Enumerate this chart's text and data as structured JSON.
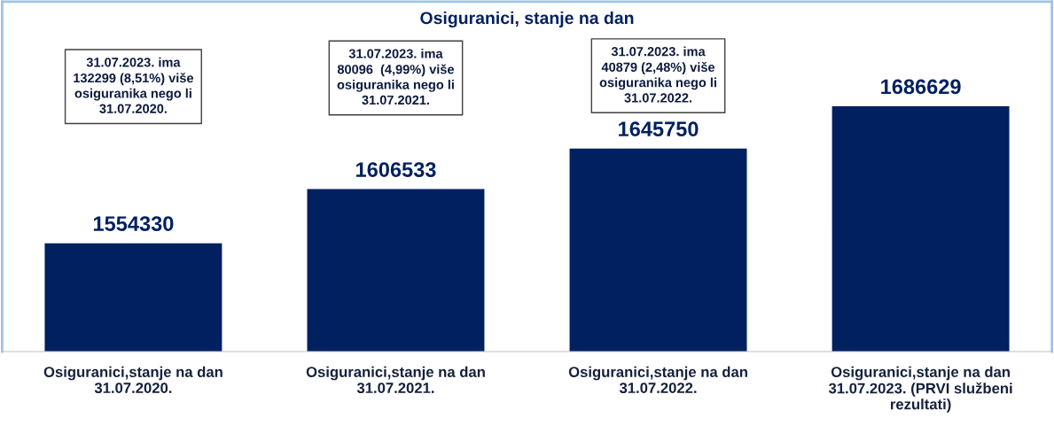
{
  "chart_data": {
    "type": "bar",
    "title": "Osiguranici, stanje na dan",
    "categories": [
      "Osiguranici,stanje na dan\n31.07.2020.",
      "Osiguranici,stanje na dan\n31.07.2021.",
      "Osiguranici,stanje na dan\n31.07.2022.",
      "Osiguranici,stanje na dan\n31.07.2023. (PRVI službeni\nrezultati)"
    ],
    "values": [
      1554330,
      1606533,
      1645750,
      1686629
    ],
    "color": "#002060",
    "ylim": [
      1449000,
      1787000
    ],
    "tick_labels": "x",
    "data_labels": true,
    "grid": false,
    "legend": false,
    "annotations": [
      "31.07.2023. ima\n132299 (8,51%) više\nosiguranika nego li\n31.07.2020.",
      "31.07.2023. ima\n80096  (4,99%) više\nosiguranika nego li\n31.07.2021.",
      "31.07.2023. ima\n40879 (2,48%) više\nosiguranika nego li\n31.07.2022."
    ]
  }
}
